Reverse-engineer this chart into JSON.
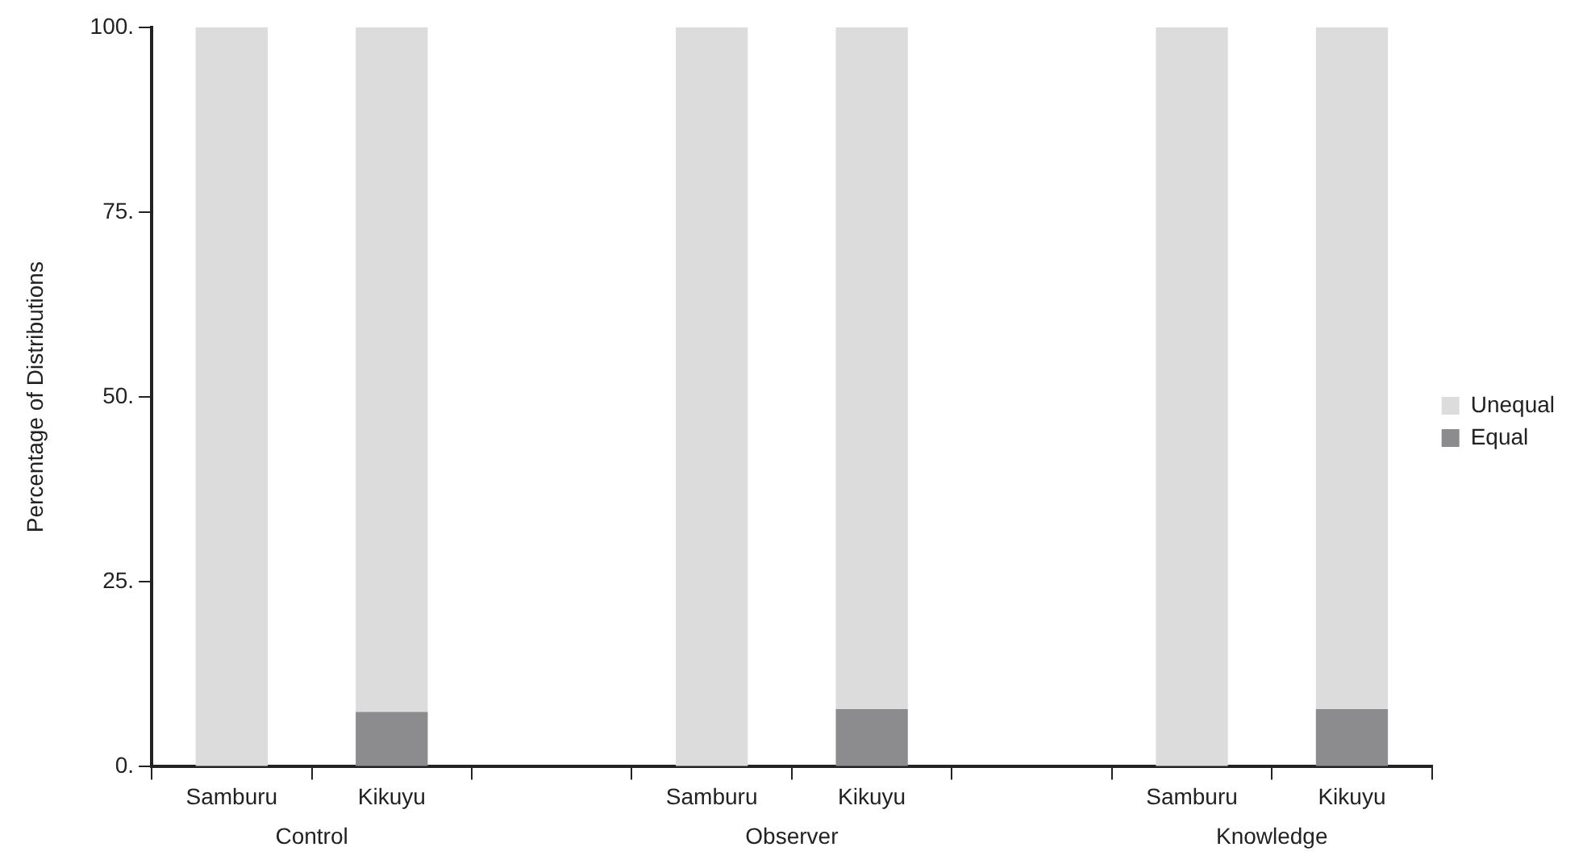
{
  "chart_data": {
    "type": "bar",
    "stacked": true,
    "ylabel": "Percentage of Distributions",
    "categories": [
      "Samburu",
      "Kikuyu",
      null,
      "Samburu",
      "Kikuyu",
      null,
      "Samburu",
      "Kikuyu"
    ],
    "series": [
      {
        "name": "Equal",
        "color": "#8c8c8e",
        "values": [
          0,
          7.4,
          null,
          0,
          7.8,
          null,
          0,
          7.8
        ]
      },
      {
        "name": "Unequal",
        "color": "#dcdcdd",
        "values": [
          100,
          92.6,
          null,
          100,
          92.2,
          null,
          100,
          92.2
        ]
      }
    ],
    "ylim": [
      0,
      100
    ],
    "yticks": [
      {
        "value": 0,
        "label": "0."
      },
      {
        "value": 25,
        "label": "25."
      },
      {
        "value": 50,
        "label": "50."
      },
      {
        "value": 75,
        "label": "75."
      },
      {
        "value": 100,
        "label": "100."
      }
    ],
    "grid": false,
    "legend": "right",
    "annotations": [
      "Control",
      "Observer",
      "Knowledge"
    ]
  }
}
